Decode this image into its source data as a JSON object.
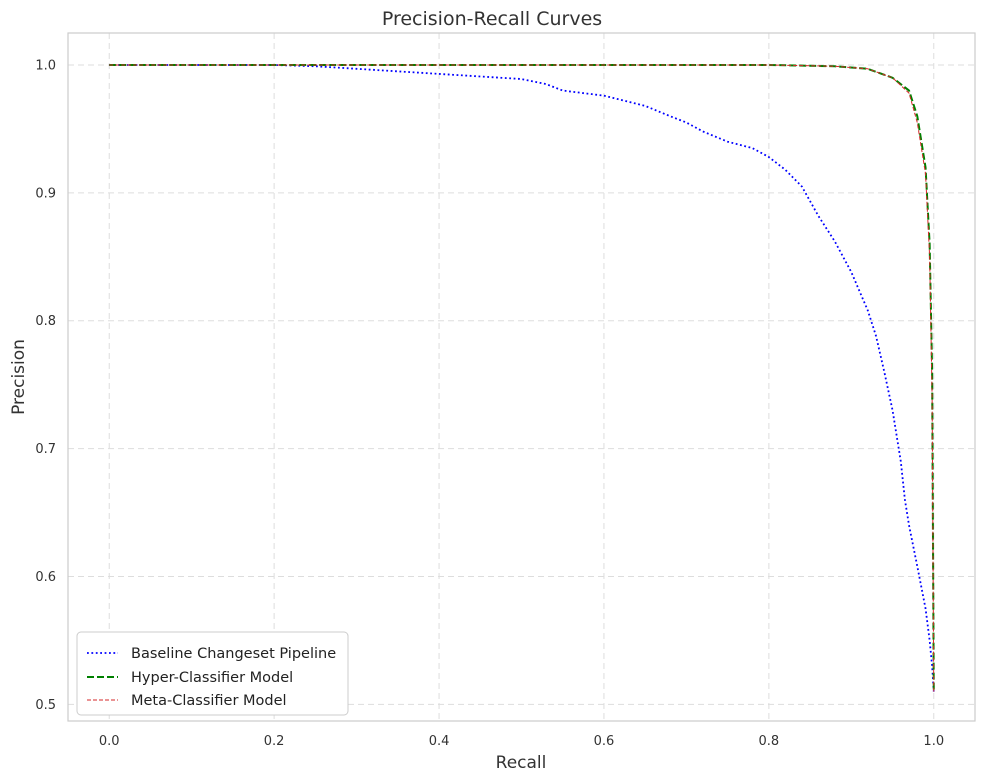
{
  "chart_data": {
    "type": "line",
    "title": "Precision-Recall Curves",
    "xlabel": "Recall",
    "ylabel": "Precision",
    "xlim": [
      -0.05,
      1.05
    ],
    "ylim": [
      0.487,
      1.025
    ],
    "x_ticks": [
      "0.0",
      "0.2",
      "0.4",
      "0.6",
      "0.8",
      "1.0"
    ],
    "y_ticks": [
      "0.5",
      "0.6",
      "0.7",
      "0.8",
      "0.9",
      "1.0"
    ],
    "grid": true,
    "legend_position": "bottom-left",
    "series": [
      {
        "name": "Baseline Changeset Pipeline",
        "color": "#0000ff",
        "style": "dotted",
        "points": [
          [
            0.0,
            1.0
          ],
          [
            0.1,
            1.0
          ],
          [
            0.2,
            1.0
          ],
          [
            0.25,
            0.999
          ],
          [
            0.3,
            0.997
          ],
          [
            0.35,
            0.995
          ],
          [
            0.4,
            0.993
          ],
          [
            0.45,
            0.991
          ],
          [
            0.5,
            0.989
          ],
          [
            0.53,
            0.985
          ],
          [
            0.55,
            0.98
          ],
          [
            0.6,
            0.976
          ],
          [
            0.65,
            0.968
          ],
          [
            0.68,
            0.96
          ],
          [
            0.7,
            0.955
          ],
          [
            0.72,
            0.948
          ],
          [
            0.75,
            0.94
          ],
          [
            0.78,
            0.935
          ],
          [
            0.8,
            0.928
          ],
          [
            0.82,
            0.918
          ],
          [
            0.84,
            0.905
          ],
          [
            0.86,
            0.882
          ],
          [
            0.88,
            0.862
          ],
          [
            0.9,
            0.838
          ],
          [
            0.92,
            0.808
          ],
          [
            0.93,
            0.788
          ],
          [
            0.94,
            0.76
          ],
          [
            0.95,
            0.73
          ],
          [
            0.96,
            0.69
          ],
          [
            0.965,
            0.66
          ],
          [
            0.97,
            0.64
          ],
          [
            0.98,
            0.608
          ],
          [
            0.99,
            0.575
          ],
          [
            0.995,
            0.55
          ],
          [
            0.998,
            0.53
          ],
          [
            1.0,
            0.51
          ]
        ]
      },
      {
        "name": "Hyper-Classifier Model",
        "color": "#008000",
        "style": "dashed",
        "points": [
          [
            0.0,
            1.0
          ],
          [
            0.5,
            1.0
          ],
          [
            0.8,
            1.0
          ],
          [
            0.88,
            0.999
          ],
          [
            0.92,
            0.997
          ],
          [
            0.95,
            0.99
          ],
          [
            0.97,
            0.98
          ],
          [
            0.98,
            0.96
          ],
          [
            0.99,
            0.92
          ],
          [
            0.995,
            0.86
          ],
          [
            0.998,
            0.76
          ],
          [
            1.0,
            0.51
          ]
        ]
      },
      {
        "name": "Meta-Classifier Model",
        "color": "#d62728",
        "style": "thin-dashed",
        "points": [
          [
            0.0,
            1.0
          ],
          [
            0.5,
            1.0
          ],
          [
            0.8,
            1.0
          ],
          [
            0.88,
            0.999
          ],
          [
            0.92,
            0.997
          ],
          [
            0.95,
            0.99
          ],
          [
            0.97,
            0.978
          ],
          [
            0.98,
            0.955
          ],
          [
            0.99,
            0.915
          ],
          [
            0.995,
            0.85
          ],
          [
            0.998,
            0.74
          ],
          [
            1.0,
            0.51
          ]
        ]
      }
    ]
  }
}
